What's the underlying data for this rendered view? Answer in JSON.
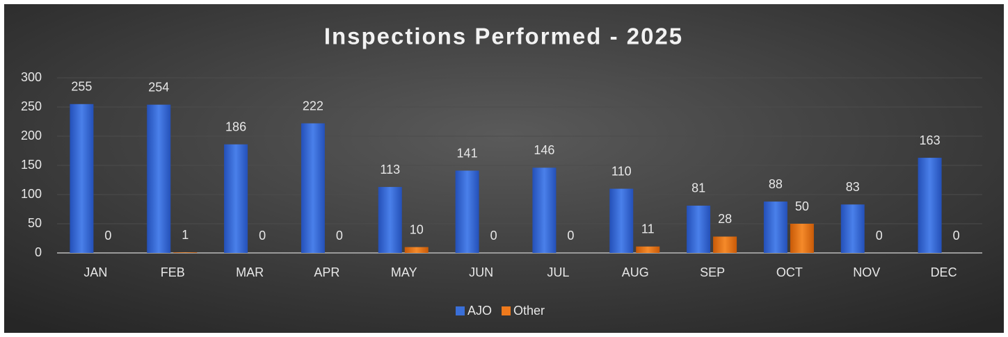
{
  "chart_data": {
    "type": "bar",
    "title": "Inspections Performed - 2025",
    "categories": [
      "JAN",
      "FEB",
      "MAR",
      "APR",
      "MAY",
      "JUN",
      "JUL",
      "AUG",
      "SEP",
      "OCT",
      "NOV",
      "DEC"
    ],
    "series": [
      {
        "name": "AJO",
        "color": "#3a6fd8",
        "values": [
          255,
          254,
          186,
          222,
          113,
          141,
          146,
          110,
          81,
          88,
          83,
          163
        ]
      },
      {
        "name": "Other",
        "color": "#ef7a1c",
        "values": [
          0,
          1,
          0,
          0,
          10,
          0,
          0,
          11,
          28,
          50,
          0,
          0
        ]
      }
    ],
    "ylim": [
      0,
      300
    ],
    "yticks": [
      0,
      50,
      100,
      150,
      200,
      250,
      300
    ],
    "grid": true,
    "legend": "bottom"
  }
}
